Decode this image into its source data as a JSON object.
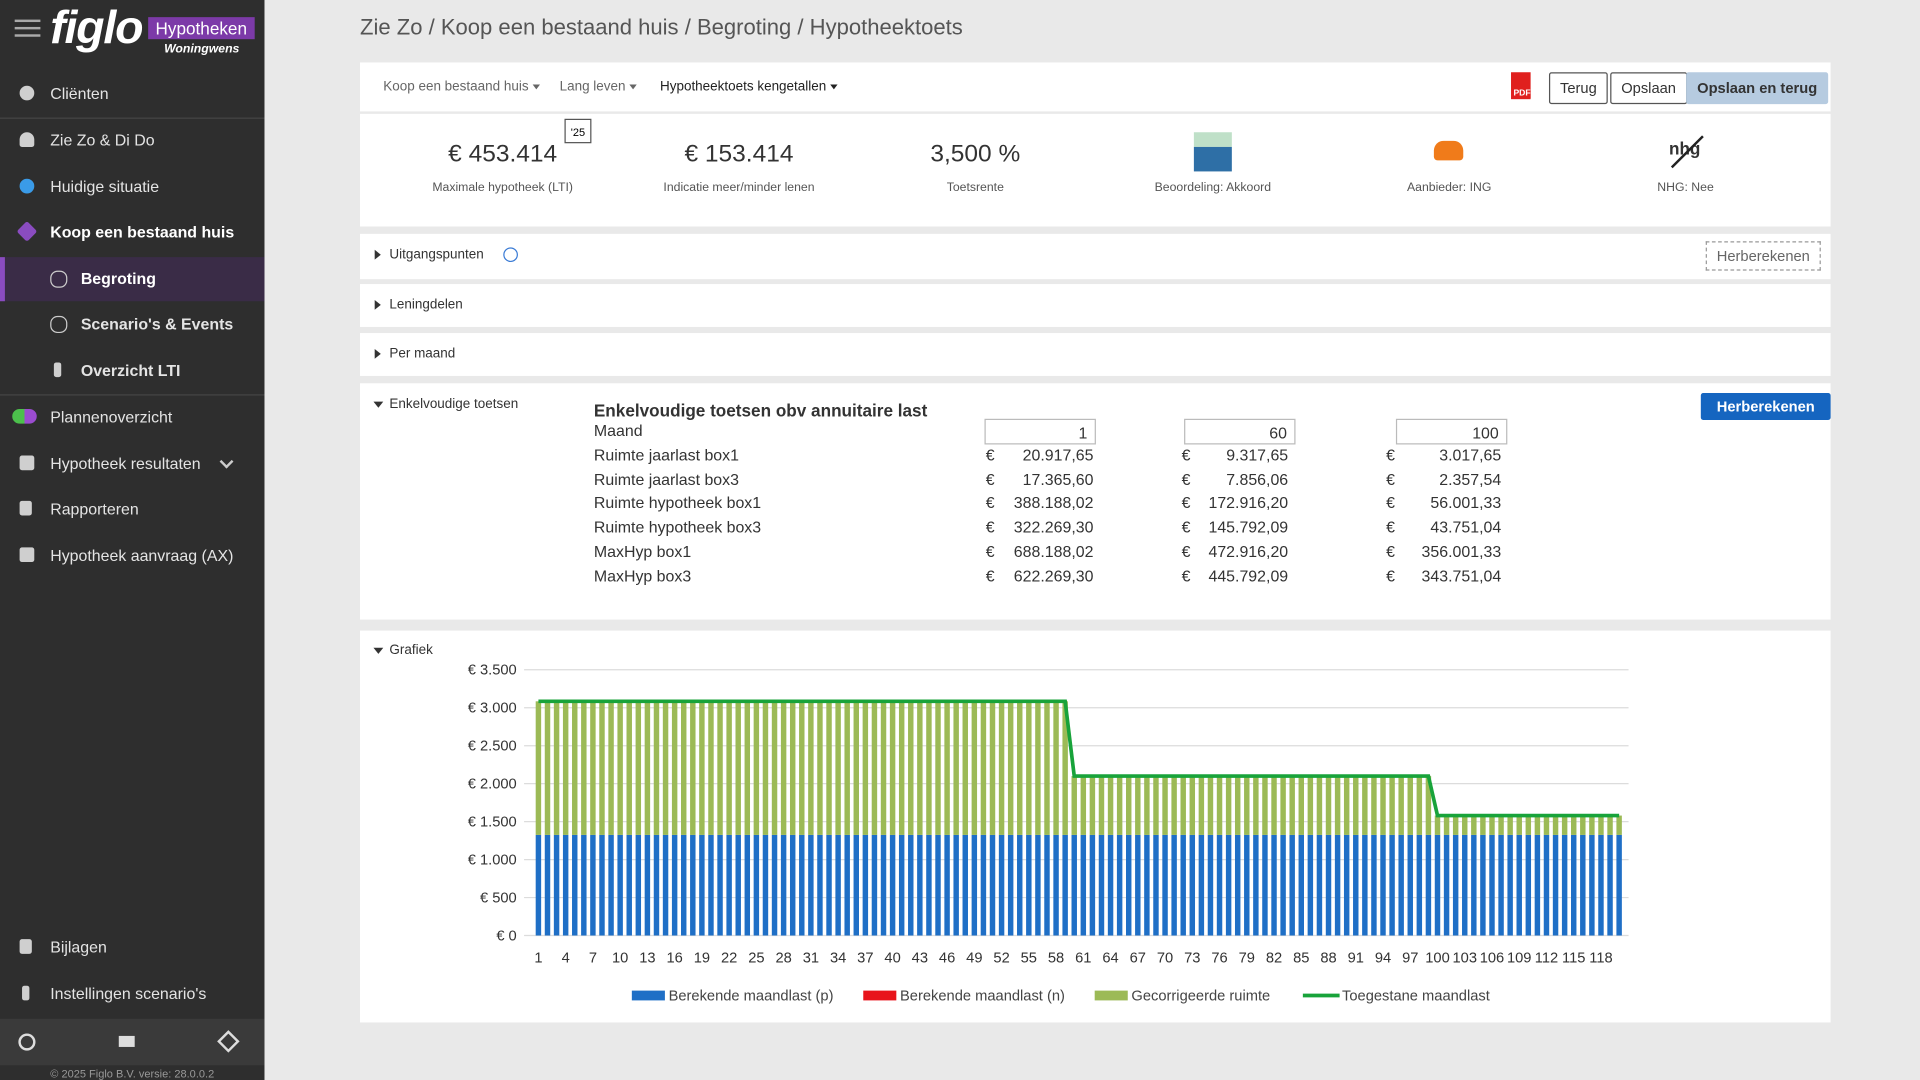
{
  "logo": {
    "brand": "figlo",
    "badge": "Hypotheken",
    "sub": "Woningwens"
  },
  "sidebar": {
    "items": [
      {
        "label": "Cliënten"
      },
      {
        "label": "Zie Zo & Di Do"
      },
      {
        "label": "Huidige situatie"
      },
      {
        "label": "Koop een bestaand huis"
      },
      {
        "label": "Begroting"
      },
      {
        "label": "Scenario's & Events"
      },
      {
        "label": "Overzicht LTI"
      },
      {
        "label": "Plannenoverzicht"
      },
      {
        "label": "Hypotheek resultaten"
      },
      {
        "label": "Rapporteren"
      },
      {
        "label": "Hypotheek aanvraag (AX)"
      }
    ],
    "bottom_items": [
      {
        "label": "Bijlagen"
      },
      {
        "label": "Instellingen scenario's"
      }
    ],
    "footer": "© 2025 Figlo B.V. versie: 28.0.0.2"
  },
  "breadcrumb": "Zie Zo / Koop een bestaand huis / Begroting / Hypotheektoets",
  "toolbar": {
    "dropdowns": [
      "Koop een bestaand huis",
      "Lang leven",
      "Hypotheektoets kengetallen"
    ],
    "pdf": "PDF",
    "buttons": [
      "Terug",
      "Opslaan",
      "Opslaan en terug"
    ]
  },
  "kpis": [
    {
      "value": "€ 453.414",
      "label": "Maximale hypotheek (LTI)",
      "badge": "'25"
    },
    {
      "value": "€ 153.414",
      "label": "Indicatie meer/minder lenen"
    },
    {
      "value": "3,500 %",
      "label": "Toetsrente"
    },
    {
      "label": "Beoordeling: Akkoord"
    },
    {
      "label": "Aanbieder: ING"
    },
    {
      "label": "NHG: Nee",
      "icon_text": "nhg"
    }
  ],
  "sections": [
    {
      "title": "Uitgangspunten",
      "button": "Herberekenen"
    },
    {
      "title": "Leningdelen"
    },
    {
      "title": "Per maand"
    },
    {
      "title": "Enkelvoudige toetsen",
      "button": "Herberekenen"
    },
    {
      "title": "Grafiek"
    }
  ],
  "table": {
    "title": "Enkelvoudige toetsen obv annuitaire last",
    "currency": "€",
    "rows": [
      [
        "Maand",
        "1",
        "60",
        "100"
      ],
      [
        "Ruimte jaarlast box1",
        "20.917,65",
        "9.317,65",
        "3.017,65"
      ],
      [
        "Ruimte jaarlast box3",
        "17.365,60",
        "7.856,06",
        "2.357,54"
      ],
      [
        "Ruimte hypotheek box1",
        "388.188,02",
        "172.916,20",
        "56.001,33"
      ],
      [
        "Ruimte hypotheek box3",
        "322.269,30",
        "145.792,09",
        "43.751,04"
      ],
      [
        "MaxHyp box1",
        "688.188,02",
        "472.916,20",
        "356.001,33"
      ],
      [
        "MaxHyp box3",
        "622.269,30",
        "445.792,09",
        "343.751,04"
      ]
    ]
  },
  "chart_data": {
    "type": "bar",
    "stacked": true,
    "grid": true,
    "ylim": [
      0,
      3500
    ],
    "yticks": [
      {
        "value": 0,
        "label": "€ 0"
      },
      {
        "value": 500,
        "label": "€ 500"
      },
      {
        "value": 1000,
        "label": "€ 1.000"
      },
      {
        "value": 1500,
        "label": "€ 1.500"
      },
      {
        "value": 2000,
        "label": "€ 2.000"
      },
      {
        "value": 2500,
        "label": "€ 2.500"
      },
      {
        "value": 3000,
        "label": "€ 3.000"
      },
      {
        "value": 3500,
        "label": "€ 3.500"
      }
    ],
    "categories": [
      1,
      null,
      null,
      4,
      null,
      null,
      7,
      null,
      null,
      10,
      null,
      null,
      13,
      null,
      null,
      16,
      null,
      null,
      19,
      null,
      null,
      22,
      null,
      null,
      25,
      null,
      null,
      28,
      null,
      null,
      31,
      null,
      null,
      34,
      null,
      null,
      37,
      null,
      null,
      40,
      null,
      null,
      43,
      null,
      null,
      46,
      null,
      null,
      49,
      null,
      null,
      52,
      null,
      null,
      55,
      null,
      null,
      58,
      null,
      null,
      61,
      null,
      null,
      64,
      null,
      null,
      67,
      null,
      null,
      70,
      null,
      null,
      73,
      null,
      null,
      76,
      null,
      null,
      79,
      null,
      null,
      82,
      null,
      null,
      85,
      null,
      null,
      88,
      null,
      null,
      91,
      null,
      null,
      94,
      null,
      null,
      97,
      null,
      null,
      100,
      null,
      null,
      103,
      null,
      null,
      106,
      null,
      null,
      109,
      null,
      null,
      112,
      null,
      null,
      115,
      null,
      null,
      118,
      null,
      null
    ],
    "series": [
      {
        "name": "Berekende maandlast (p)",
        "type": "bar",
        "color": "#1f6fc6",
        "values": [
          1325,
          1325,
          1325,
          1325,
          1325,
          1325,
          1325,
          1325,
          1325,
          1325,
          1325,
          1325,
          1325,
          1325,
          1325,
          1325,
          1325,
          1325,
          1325,
          1325,
          1325,
          1325,
          1325,
          1325,
          1325,
          1325,
          1325,
          1325,
          1325,
          1325,
          1325,
          1325,
          1325,
          1325,
          1325,
          1325,
          1325,
          1325,
          1325,
          1325,
          1325,
          1325,
          1325,
          1325,
          1325,
          1325,
          1325,
          1325,
          1325,
          1325,
          1325,
          1325,
          1325,
          1325,
          1325,
          1325,
          1325,
          1325,
          1325,
          1325,
          1325,
          1325,
          1325,
          1325,
          1325,
          1325,
          1325,
          1325,
          1325,
          1325,
          1325,
          1325,
          1325,
          1325,
          1325,
          1325,
          1325,
          1325,
          1325,
          1325,
          1325,
          1325,
          1325,
          1325,
          1325,
          1325,
          1325,
          1325,
          1325,
          1325,
          1325,
          1325,
          1325,
          1325,
          1325,
          1325,
          1325,
          1325,
          1325,
          1325,
          1325,
          1325,
          1325,
          1325,
          1325,
          1325,
          1325,
          1325,
          1325,
          1325,
          1325,
          1325,
          1325,
          1325,
          1325,
          1325,
          1325,
          1325,
          1325,
          1325
        ]
      },
      {
        "name": "Berekende maandlast (n)",
        "type": "bar",
        "color": "#e8141b",
        "values": [
          0,
          0,
          0,
          0,
          0,
          0,
          0,
          0,
          0,
          0,
          0,
          0,
          0,
          0,
          0,
          0,
          0,
          0,
          0,
          0,
          0,
          0,
          0,
          0,
          0,
          0,
          0,
          0,
          0,
          0,
          0,
          0,
          0,
          0,
          0,
          0,
          0,
          0,
          0,
          0,
          0,
          0,
          0,
          0,
          0,
          0,
          0,
          0,
          0,
          0,
          0,
          0,
          0,
          0,
          0,
          0,
          0,
          0,
          0,
          0,
          0,
          0,
          0,
          0,
          0,
          0,
          0,
          0,
          0,
          0,
          0,
          0,
          0,
          0,
          0,
          0,
          0,
          0,
          0,
          0,
          0,
          0,
          0,
          0,
          0,
          0,
          0,
          0,
          0,
          0,
          0,
          0,
          0,
          0,
          0,
          0,
          0,
          0,
          0,
          0,
          0,
          0,
          0,
          0,
          0,
          0,
          0,
          0,
          0,
          0,
          0,
          0,
          0,
          0,
          0,
          0,
          0,
          0,
          0,
          0
        ]
      },
      {
        "name": "Gecorrigeerde ruimte",
        "type": "bar",
        "color": "#9cba56",
        "values": [
          1760,
          1760,
          1760,
          1760,
          1760,
          1760,
          1760,
          1760,
          1760,
          1760,
          1760,
          1760,
          1760,
          1760,
          1760,
          1760,
          1760,
          1760,
          1760,
          1760,
          1760,
          1760,
          1760,
          1760,
          1760,
          1760,
          1760,
          1760,
          1760,
          1760,
          1760,
          1760,
          1760,
          1760,
          1760,
          1760,
          1760,
          1760,
          1760,
          1760,
          1760,
          1760,
          1760,
          1760,
          1760,
          1760,
          1760,
          1760,
          1760,
          1760,
          1760,
          1760,
          1760,
          1760,
          1760,
          1760,
          1760,
          1760,
          1760,
          775,
          775,
          775,
          775,
          775,
          775,
          775,
          775,
          775,
          775,
          775,
          775,
          775,
          775,
          775,
          775,
          775,
          775,
          775,
          775,
          775,
          775,
          775,
          775,
          775,
          775,
          775,
          775,
          775,
          775,
          775,
          775,
          775,
          775,
          775,
          775,
          775,
          775,
          775,
          775,
          255,
          255,
          255,
          255,
          255,
          255,
          255,
          255,
          255,
          255,
          255,
          255,
          255,
          255,
          255,
          255,
          255,
          255,
          255,
          255,
          255
        ]
      },
      {
        "name": "Toegestane maandlast",
        "type": "line",
        "color": "#18a33a",
        "values": [
          3085,
          3085,
          3085,
          3085,
          3085,
          3085,
          3085,
          3085,
          3085,
          3085,
          3085,
          3085,
          3085,
          3085,
          3085,
          3085,
          3085,
          3085,
          3085,
          3085,
          3085,
          3085,
          3085,
          3085,
          3085,
          3085,
          3085,
          3085,
          3085,
          3085,
          3085,
          3085,
          3085,
          3085,
          3085,
          3085,
          3085,
          3085,
          3085,
          3085,
          3085,
          3085,
          3085,
          3085,
          3085,
          3085,
          3085,
          3085,
          3085,
          3085,
          3085,
          3085,
          3085,
          3085,
          3085,
          3085,
          3085,
          3085,
          3085,
          2100,
          2100,
          2100,
          2100,
          2100,
          2100,
          2100,
          2100,
          2100,
          2100,
          2100,
          2100,
          2100,
          2100,
          2100,
          2100,
          2100,
          2100,
          2100,
          2100,
          2100,
          2100,
          2100,
          2100,
          2100,
          2100,
          2100,
          2100,
          2100,
          2100,
          2100,
          2100,
          2100,
          2100,
          2100,
          2100,
          2100,
          2100,
          2100,
          2100,
          1580,
          1580,
          1580,
          1580,
          1580,
          1580,
          1580,
          1580,
          1580,
          1580,
          1580,
          1580,
          1580,
          1580,
          1580,
          1580,
          1580,
          1580,
          1580,
          1580,
          1580
        ]
      }
    ]
  }
}
